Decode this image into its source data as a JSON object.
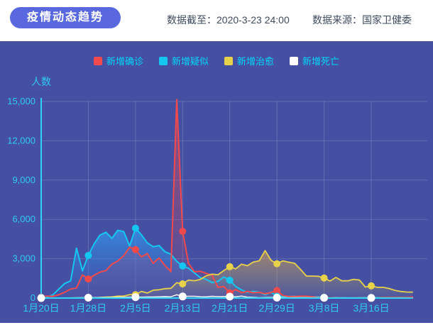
{
  "header": {
    "title": "疫情动态趋势",
    "data_cutoff": "数据截至：2020-3-23 24:00",
    "data_source": "数据来源：国家卫健委"
  },
  "colors": {
    "accent": "#5a68df",
    "panel_bg": "#4550a3",
    "header_text": "#3e4a5e",
    "axis": "#2fd3f6",
    "tick_text": "#2fc9f2",
    "legend_text": "#00d8fa",
    "grid": "rgba(255,255,255,0.16)"
  },
  "chart_data": {
    "type": "line",
    "title": "",
    "ylabel": "人数",
    "xlabel": "",
    "ylim": [
      0,
      15000
    ],
    "grid": true,
    "legend_position": "top",
    "ytick_values": [
      0,
      3000,
      6000,
      9000,
      12000,
      15000
    ],
    "ytick_labels": [
      "0",
      "3,000",
      "6,000",
      "9,000",
      "12,000",
      "15,000"
    ],
    "xtick_labels": [
      "1月20日",
      "1月28日",
      "2月5日",
      "2月13日",
      "2月21日",
      "2月29日",
      "3月8日",
      "3月16日"
    ],
    "xtick_day_indices": [
      0,
      8,
      16,
      24,
      32,
      40,
      48,
      56
    ],
    "date_range": "2020-1-20 至 2020-3-23",
    "days_total": 64,
    "series": [
      {
        "key": "confirmed",
        "name": "新增确诊",
        "color": "#f2494d",
        "fill_top": "rgba(242,73,77,0.50)",
        "fill_bottom": "rgba(242,73,77,0.04)",
        "values": [
          77,
          149,
          131,
          259,
          444,
          688,
          769,
          1771,
          1459,
          1737,
          1982,
          2102,
          2590,
          2829,
          3235,
          3887,
          3694,
          3143,
          3399,
          2656,
          3062,
          2478,
          2015,
          15152,
          5090,
          2641,
          2009,
          2048,
          1886,
          1749,
          820,
          889,
          397,
          648,
          409,
          508,
          406,
          433,
          327,
          427,
          573,
          202,
          125,
          119,
          139,
          143,
          99,
          44,
          40,
          19,
          24,
          15,
          8,
          11,
          20,
          16,
          21,
          13,
          34,
          39,
          41,
          46,
          39,
          78
        ]
      },
      {
        "key": "suspected",
        "name": "新增疑似",
        "color": "#14c7f1",
        "fill_top": "rgba(52,150,235,0.80)",
        "fill_bottom": "rgba(52,110,205,0.10)",
        "values": [
          54,
          53,
          257,
          680,
          1118,
          1309,
          3806,
          2077,
          3248,
          4148,
          4812,
          5019,
          4562,
          5173,
          5072,
          3971,
          5328,
          4833,
          4214,
          3916,
          4008,
          3536,
          3342,
          2807,
          2450,
          2277,
          1918,
          1563,
          1432,
          1185,
          1277,
          1614,
          1361,
          882,
          620,
          439,
          508,
          452,
          248,
          452,
          141,
          129,
          129,
          143,
          102,
          102,
          99,
          84,
          59,
          17,
          31,
          33,
          21,
          26,
          36,
          41,
          39,
          37,
          31,
          36,
          43,
          54,
          35,
          41
        ]
      },
      {
        "key": "cured",
        "name": "新增治愈",
        "color": "#e8d24a",
        "fill_top": "rgba(232,170,70,0.55)",
        "fill_bottom": "rgba(232,210,74,0.05)",
        "values": [
          0,
          0,
          0,
          6,
          3,
          11,
          9,
          12,
          43,
          21,
          47,
          72,
          85,
          147,
          157,
          262,
          261,
          510,
          387,
          600,
          632,
          716,
          744,
          1171,
          1081,
          1373,
          1323,
          1425,
          1701,
          1824,
          1779,
          2109,
          2393,
          2230,
          2589,
          2467,
          2750,
          2842,
          3622,
          2885,
          2623,
          2837,
          2742,
          2652,
          2189,
          1681,
          1678,
          1661,
          1535,
          1297,
          1578,
          1318,
          1318,
          1430,
          1373,
          838,
          930,
          819,
          815,
          730,
          590,
          504,
          459,
          456
        ]
      },
      {
        "key": "deaths",
        "name": "新增死亡",
        "color": "#ffffff",
        "fill_top": "rgba(255,255,255,0.10)",
        "fill_bottom": "rgba(255,255,255,0)",
        "values": [
          0,
          3,
          8,
          8,
          16,
          15,
          24,
          26,
          26,
          38,
          43,
          46,
          45,
          57,
          64,
          65,
          73,
          73,
          86,
          89,
          97,
          108,
          97,
          254,
          121,
          143,
          142,
          105,
          98,
          136,
          114,
          118,
          109,
          97,
          150,
          71,
          52,
          29,
          44,
          47,
          35,
          42,
          31,
          38,
          31,
          30,
          28,
          27,
          22,
          17,
          22,
          11,
          7,
          13,
          10,
          14,
          13,
          11,
          8,
          3,
          7,
          6,
          9,
          7
        ]
      }
    ]
  }
}
